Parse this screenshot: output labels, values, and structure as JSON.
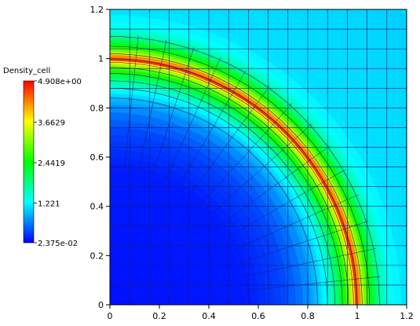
{
  "chart_data": {
    "type": "heatmap",
    "title": "",
    "xlabel": "",
    "ylabel": "",
    "xlim": [
      0,
      1.2
    ],
    "ylim": [
      0,
      1.2
    ],
    "x_ticks": [
      "0",
      "0.2",
      "0.4",
      "0.6",
      "0.8",
      "1",
      "1.2"
    ],
    "y_ticks": [
      "0",
      "0.2",
      "0.4",
      "0.6",
      "0.8",
      "1",
      "1.2"
    ],
    "x_tick_values": [
      0,
      0.2,
      0.4,
      0.6,
      0.8,
      1,
      1.2
    ],
    "y_tick_values": [
      0,
      0.2,
      0.4,
      0.6,
      0.8,
      1,
      1.2
    ],
    "colorbar": {
      "title": "Density_cell",
      "min": 0.02375,
      "max": 4.908,
      "labels": [
        "4.908e+00",
        "3.6629",
        "2.4419",
        "1.221",
        "2.375e-02"
      ],
      "label_values": [
        4.908,
        3.6629,
        2.4419,
        1.221,
        0.02375
      ],
      "colormap": "rainbow",
      "stops": [
        "#0000ff",
        "#00ffff",
        "#00ff00",
        "#ffff00",
        "#ff0000"
      ]
    },
    "mesh_color": "#1a1a6e",
    "radial_profile": [
      {
        "r": 0.0,
        "density": 0.1
      },
      {
        "r": 0.55,
        "density": 0.15
      },
      {
        "r": 0.7,
        "density": 0.35
      },
      {
        "r": 0.78,
        "density": 0.6
      },
      {
        "r": 0.84,
        "density": 0.95
      },
      {
        "r": 0.88,
        "density": 1.35
      },
      {
        "r": 0.91,
        "density": 1.8
      },
      {
        "r": 0.94,
        "density": 2.3
      },
      {
        "r": 0.97,
        "density": 3.1
      },
      {
        "r": 0.99,
        "density": 4.0
      },
      {
        "r": 1.0,
        "density": 4.908
      },
      {
        "r": 1.02,
        "density": 3.4
      },
      {
        "r": 1.05,
        "density": 2.5
      },
      {
        "r": 1.09,
        "density": 1.7
      },
      {
        "r": 1.13,
        "density": 1.3
      },
      {
        "r": 1.2,
        "density": 1.1
      },
      {
        "r": 1.8,
        "density": 1.0
      }
    ]
  }
}
